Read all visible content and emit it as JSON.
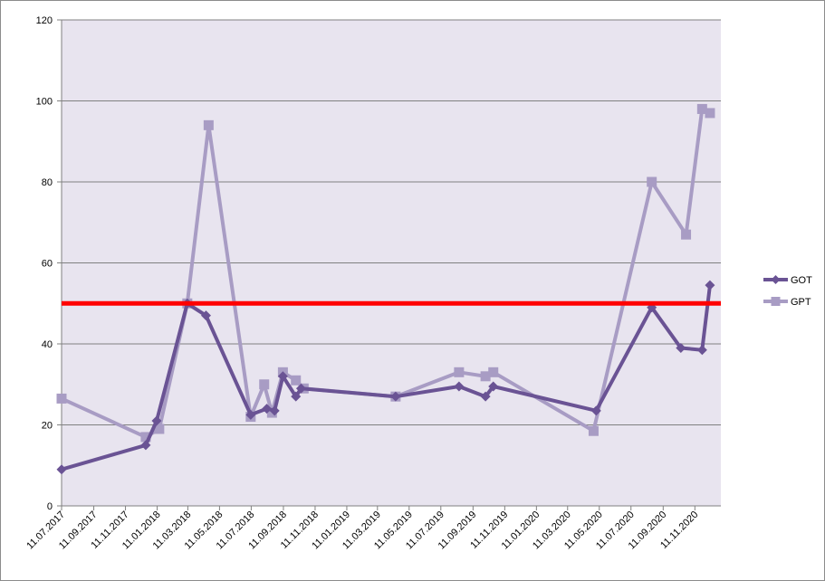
{
  "chart_data": {
    "type": "line",
    "title": "",
    "xlabel": "",
    "ylabel": "",
    "ylim": [
      0,
      120
    ],
    "yticks": [
      0,
      20,
      40,
      60,
      80,
      100,
      120
    ],
    "xlim": [
      "2017-07-11",
      "2020-12-31"
    ],
    "xtick_labels": [
      "11.07.2017",
      "11.09.2017",
      "11.11.2017",
      "11.01.2018",
      "11.03.2018",
      "11.05.2018",
      "11.07.2018",
      "11.09.2018",
      "11.11.2018",
      "11.01.2019",
      "11.03.2019",
      "11.05.2019",
      "11.07.2019",
      "11.09.2019",
      "11.11.2019",
      "11.01.2020",
      "11.03.2020",
      "11.05.2020",
      "11.07.2020",
      "11.09.2020",
      "11.11.2020"
    ],
    "xtick_dates": [
      "2017-07-11",
      "2017-09-11",
      "2017-11-11",
      "2018-01-11",
      "2018-03-11",
      "2018-05-11",
      "2018-07-11",
      "2018-09-11",
      "2018-11-11",
      "2019-01-11",
      "2019-03-11",
      "2019-05-11",
      "2019-07-11",
      "2019-09-11",
      "2019-11-11",
      "2020-01-11",
      "2020-03-11",
      "2020-05-11",
      "2020-07-11",
      "2020-09-11",
      "2020-11-11"
    ],
    "grid": true,
    "legend_position": "right",
    "threshold": {
      "value": 50,
      "color": "#ff0000"
    },
    "colors": {
      "plot_background": "#e8e4ef",
      "gridline": "#808080",
      "axis": "#808080"
    },
    "series": [
      {
        "name": "GOT",
        "color": "#6a5394",
        "marker": "diamond",
        "points": [
          [
            "2017-07-11",
            9
          ],
          [
            "2017-12-20",
            15
          ],
          [
            "2018-01-10",
            21
          ],
          [
            "2018-03-10",
            50
          ],
          [
            "2018-04-15",
            47
          ],
          [
            "2018-07-10",
            22.5
          ],
          [
            "2018-08-10",
            24
          ],
          [
            "2018-08-25",
            23.5
          ],
          [
            "2018-09-10",
            32
          ],
          [
            "2018-10-05",
            27
          ],
          [
            "2018-10-15",
            29
          ],
          [
            "2019-04-15",
            27
          ],
          [
            "2019-08-15",
            29.5
          ],
          [
            "2019-10-05",
            27
          ],
          [
            "2019-10-20",
            29.5
          ],
          [
            "2020-05-05",
            23.5
          ],
          [
            "2020-08-20",
            49
          ],
          [
            "2020-10-15",
            39
          ],
          [
            "2020-11-25",
            38.5
          ],
          [
            "2020-12-10",
            54.5
          ]
        ]
      },
      {
        "name": "GPT",
        "color": "#a89cc4",
        "marker": "square",
        "points": [
          [
            "2017-07-11",
            26.5
          ],
          [
            "2017-12-20",
            17
          ],
          [
            "2018-01-15",
            19
          ],
          [
            "2018-03-10",
            50
          ],
          [
            "2018-04-20",
            94
          ],
          [
            "2018-07-10",
            22
          ],
          [
            "2018-08-05",
            30
          ],
          [
            "2018-08-20",
            23
          ],
          [
            "2018-09-10",
            33
          ],
          [
            "2018-10-05",
            31
          ],
          [
            "2018-10-20",
            29
          ],
          [
            "2019-04-15",
            27
          ],
          [
            "2019-08-15",
            33
          ],
          [
            "2019-10-05",
            32
          ],
          [
            "2019-10-20",
            33
          ],
          [
            "2020-04-30",
            18.5
          ],
          [
            "2020-08-20",
            80
          ],
          [
            "2020-10-25",
            67
          ],
          [
            "2020-11-25",
            98
          ],
          [
            "2020-12-10",
            97
          ]
        ]
      }
    ]
  }
}
